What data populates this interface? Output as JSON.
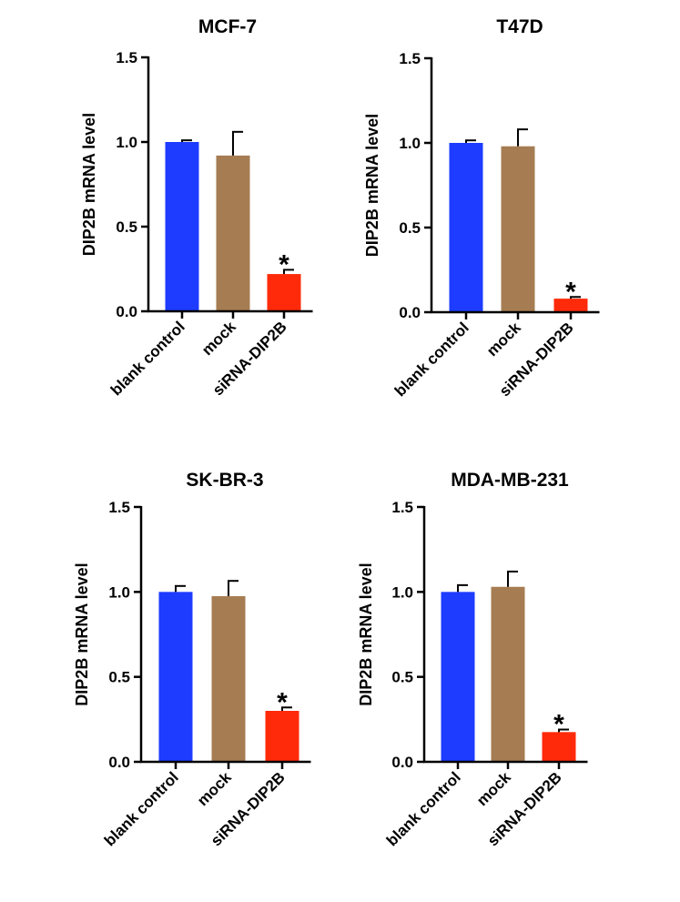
{
  "chart_data": [
    {
      "type": "bar",
      "title": "MCF-7",
      "ylabel": "DIP2B mRNA level",
      "xlabel": "",
      "ylim": [
        0,
        1.5
      ],
      "yticks": [
        "0.0",
        "0.5",
        "1.0",
        "1.5"
      ],
      "categories": [
        "blank control",
        "mock",
        "siRNA-DIP2B"
      ],
      "values": [
        1.0,
        0.92,
        0.22
      ],
      "errors": [
        0.01,
        0.14,
        0.025
      ],
      "annotations": [
        "",
        "",
        "*"
      ],
      "colors": [
        "#1d3cff",
        "#a67c52",
        "#ff2a0a"
      ]
    },
    {
      "type": "bar",
      "title": "T47D",
      "ylabel": "DIP2B mRNA level",
      "xlabel": "",
      "ylim": [
        0,
        1.5
      ],
      "yticks": [
        "0.0",
        "0.5",
        "1.0",
        "1.5"
      ],
      "categories": [
        "blank control",
        "mock",
        "siRNA-DIP2B"
      ],
      "values": [
        1.0,
        0.98,
        0.08
      ],
      "errors": [
        0.015,
        0.1,
        0.01
      ],
      "annotations": [
        "",
        "",
        "*"
      ],
      "colors": [
        "#1d3cff",
        "#a67c52",
        "#ff2a0a"
      ]
    },
    {
      "type": "bar",
      "title": "SK-BR-3",
      "ylabel": "DIP2B mRNA level",
      "xlabel": "",
      "ylim": [
        0,
        1.5
      ],
      "yticks": [
        "0.0",
        "0.5",
        "1.0",
        "1.5"
      ],
      "categories": [
        "blank control",
        "mock",
        "siRNA-DIP2B"
      ],
      "values": [
        1.0,
        0.975,
        0.3
      ],
      "errors": [
        0.035,
        0.09,
        0.02
      ],
      "annotations": [
        "",
        "",
        "*"
      ],
      "colors": [
        "#1d3cff",
        "#a67c52",
        "#ff2a0a"
      ]
    },
    {
      "type": "bar",
      "title": "MDA-MB-231",
      "ylabel": "DIP2B mRNA level",
      "xlabel": "",
      "ylim": [
        0,
        1.5
      ],
      "yticks": [
        "0.0",
        "0.5",
        "1.0",
        "1.5"
      ],
      "categories": [
        "blank control",
        "mock",
        "siRNA-DIP2B"
      ],
      "values": [
        1.0,
        1.03,
        0.175
      ],
      "errors": [
        0.04,
        0.09,
        0.015
      ],
      "annotations": [
        "",
        "",
        "*"
      ],
      "colors": [
        "#1d3cff",
        "#a67c52",
        "#ff2a0a"
      ]
    }
  ]
}
